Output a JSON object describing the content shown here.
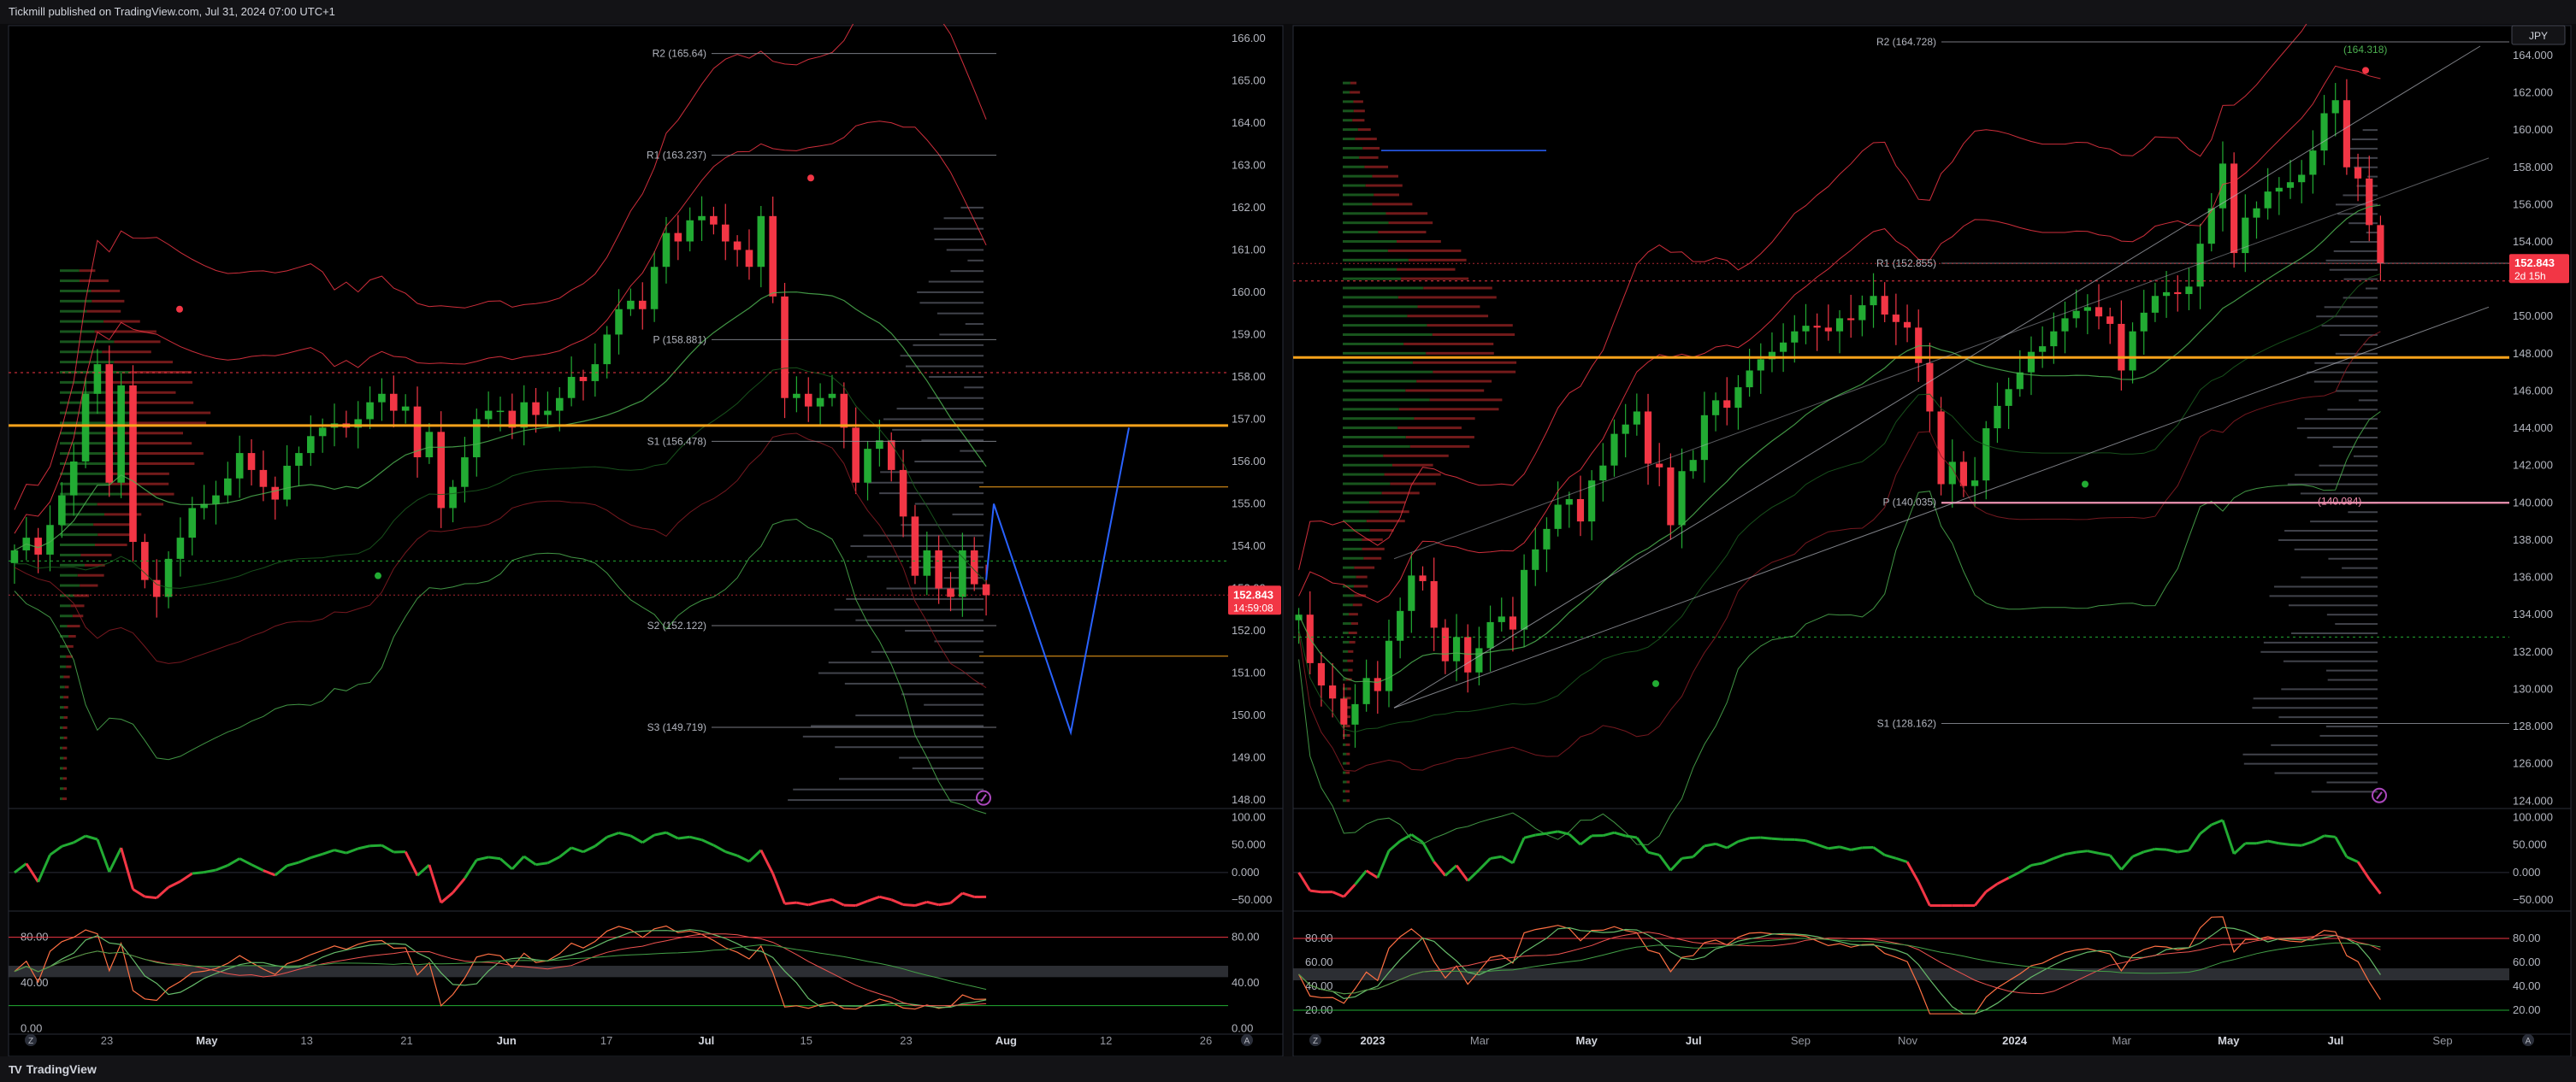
{
  "header": {
    "publisher": "Tickmill published on TradingView.com, Jul 31, 2024 07:00 UTC+1"
  },
  "footer": {
    "brand": "TradingView",
    "brand_mark": "TV"
  },
  "colors": {
    "bull": "#22ab33",
    "bear": "#f23645",
    "pivot_line": "#9598a1",
    "orange": "#f7a21b",
    "price_label": "#f23645",
    "bb": "#f23645",
    "envelope": "#4caf50",
    "blue_path": "#2962ff"
  },
  "chart_data": [
    {
      "type": "candlestick",
      "panel": "left",
      "timeframe": "daily",
      "x_tick_labels": [
        "Z",
        "23",
        "May",
        "13",
        "21",
        "Jun",
        "17",
        "Jul",
        "15",
        "23",
        "Aug",
        "12",
        "26",
        "A"
      ],
      "y_tick_labels": [
        "166.00",
        "165.00",
        "164.00",
        "163.00",
        "162.00",
        "161.00",
        "160.00",
        "159.00",
        "158.00",
        "157.00",
        "156.00",
        "155.00",
        "154.00",
        "153.00",
        "152.00",
        "151.00",
        "150.00",
        "149.00",
        "148.00"
      ],
      "ylim": [
        147.8,
        166.3
      ],
      "last_price": "152.843",
      "countdown": "14:59:08",
      "pivots": [
        {
          "label": "R2 (165.64)",
          "value": 165.64
        },
        {
          "label": "R1 (163.237)",
          "value": 163.237
        },
        {
          "label": "P (158.881)",
          "value": 158.881
        },
        {
          "label": "S1 (156.478)",
          "value": 156.478
        },
        {
          "label": "S2 (152.122)",
          "value": 152.122
        },
        {
          "label": "S3 (149.719)",
          "value": 149.719
        }
      ],
      "horizontal_levels": [
        {
          "value": 156.85,
          "style": "orange-thick"
        },
        {
          "value": 155.4,
          "style": "orange"
        },
        {
          "value": 151.4,
          "style": "orange"
        },
        {
          "value": 158.1,
          "style": "red-dotted"
        },
        {
          "value": 153.65,
          "style": "green-dotted"
        }
      ],
      "closes": [
        153.9,
        154.2,
        153.8,
        154.5,
        155.2,
        156.0,
        157.6,
        158.3,
        155.5,
        157.8,
        154.1,
        153.2,
        152.8,
        153.7,
        154.2,
        154.9,
        155.0,
        155.2,
        155.6,
        156.2,
        155.8,
        155.4,
        155.1,
        155.9,
        156.2,
        156.6,
        156.8,
        156.9,
        156.8,
        157.0,
        157.4,
        157.6,
        157.2,
        157.3,
        156.1,
        156.7,
        154.9,
        155.4,
        156.1,
        157.0,
        157.2,
        157.2,
        156.8,
        157.4,
        157.1,
        157.2,
        157.5,
        158.0,
        157.9,
        158.3,
        159.0,
        159.6,
        159.8,
        159.6,
        160.6,
        161.4,
        161.2,
        161.7,
        161.8,
        161.6,
        161.2,
        161.0,
        160.6,
        161.8,
        159.9,
        157.5,
        157.6,
        157.3,
        157.5,
        157.6,
        156.8,
        155.5,
        156.3,
        156.5,
        155.8,
        154.7,
        153.3,
        153.9,
        153.0,
        152.8,
        153.9,
        153.1,
        152.843
      ],
      "volume_profile": "horizontal red/green bars at left",
      "projection_path": [
        [
          153.2,
          155.0
        ],
        [
          150.0,
          149.6
        ],
        [
          156.8,
          156.8
        ]
      ]
    },
    {
      "type": "line",
      "panel": "left-oscillator-1",
      "y_tick_labels": [
        "100.00",
        "50.000",
        "0.000",
        "−50.000"
      ],
      "ylim": [
        -70,
        110
      ]
    },
    {
      "type": "line",
      "panel": "left-oscillator-2",
      "y_tick_labels": [
        "80.00",
        "40.00",
        "0.00"
      ],
      "ylim": [
        -5,
        100
      ]
    },
    {
      "type": "candlestick",
      "panel": "right",
      "timeframe": "weekly",
      "symbol_badge": "JPY",
      "x_tick_labels": [
        "Z",
        "2023",
        "Mar",
        "May",
        "Jul",
        "Sep",
        "Nov",
        "2024",
        "Mar",
        "May",
        "Jul",
        "Sep",
        "A"
      ],
      "y_tick_labels": [
        "164.000",
        "162.000",
        "160.000",
        "158.000",
        "156.000",
        "154.000",
        "152.000",
        "150.000",
        "148.000",
        "146.000",
        "144.000",
        "142.000",
        "140.000",
        "138.000",
        "136.000",
        "134.000",
        "132.000",
        "130.000",
        "128.000",
        "126.000",
        "124.000"
      ],
      "ylim": [
        123.6,
        165.6
      ],
      "last_price": "152.843",
      "countdown": "2d 15h",
      "pivots": [
        {
          "label": "R2 (164.728)",
          "value": 164.728
        },
        {
          "label": "R1 (152.855)",
          "value": 152.855
        },
        {
          "label": "P (140.035)",
          "value": 140.035
        },
        {
          "label": "S1 (128.162)",
          "value": 128.162
        }
      ],
      "side_labels": [
        "(164.318)",
        "(140.084)"
      ],
      "horizontal_levels": [
        {
          "value": 147.8,
          "style": "orange-thick"
        },
        {
          "value": 151.9,
          "style": "red-dotted"
        },
        {
          "value": 140.0,
          "style": "pink"
        },
        {
          "value": 132.8,
          "style": "green-dotted"
        }
      ],
      "closes": [
        134.0,
        131.4,
        130.2,
        129.5,
        128.1,
        129.2,
        130.6,
        129.9,
        132.6,
        134.2,
        136.1,
        135.8,
        133.3,
        131.5,
        132.8,
        130.9,
        132.2,
        133.6,
        133.9,
        133.2,
        136.4,
        137.5,
        138.6,
        139.9,
        140.2,
        139.0,
        141.2,
        142.0,
        143.7,
        144.2,
        144.9,
        142.1,
        141.9,
        138.8,
        141.7,
        142.3,
        144.7,
        145.5,
        145.1,
        146.2,
        147.1,
        147.7,
        148.1,
        148.6,
        149.2,
        149.5,
        149.4,
        149.2,
        149.9,
        149.8,
        150.6,
        151.1,
        150.1,
        149.7,
        149.4,
        147.5,
        144.9,
        141.0,
        142.2,
        140.9,
        141.2,
        144.0,
        145.2,
        146.1,
        147.0,
        148.1,
        148.4,
        149.2,
        149.9,
        150.3,
        150.5,
        150.0,
        149.6,
        147.1,
        149.2,
        150.2,
        151.1,
        151.3,
        151.2,
        151.6,
        153.9,
        155.8,
        158.2,
        153.4,
        155.3,
        155.8,
        156.7,
        156.9,
        157.2,
        157.6,
        158.9,
        160.9,
        161.6,
        158.0,
        157.4,
        154.9,
        152.843
      ],
      "volume_profile": "horizontal red/green bars at left",
      "trend_channel": "ascending parallel lines"
    },
    {
      "type": "line",
      "panel": "right-oscillator-1",
      "y_tick_labels": [
        "100.000",
        "50.000",
        "0.000",
        "−50.000"
      ],
      "ylim": [
        -70,
        110
      ]
    },
    {
      "type": "line",
      "panel": "right-oscillator-2",
      "y_tick_labels": [
        "80.00",
        "60.00",
        "40.00",
        "20.00"
      ],
      "ylim": [
        0,
        100
      ]
    }
  ]
}
